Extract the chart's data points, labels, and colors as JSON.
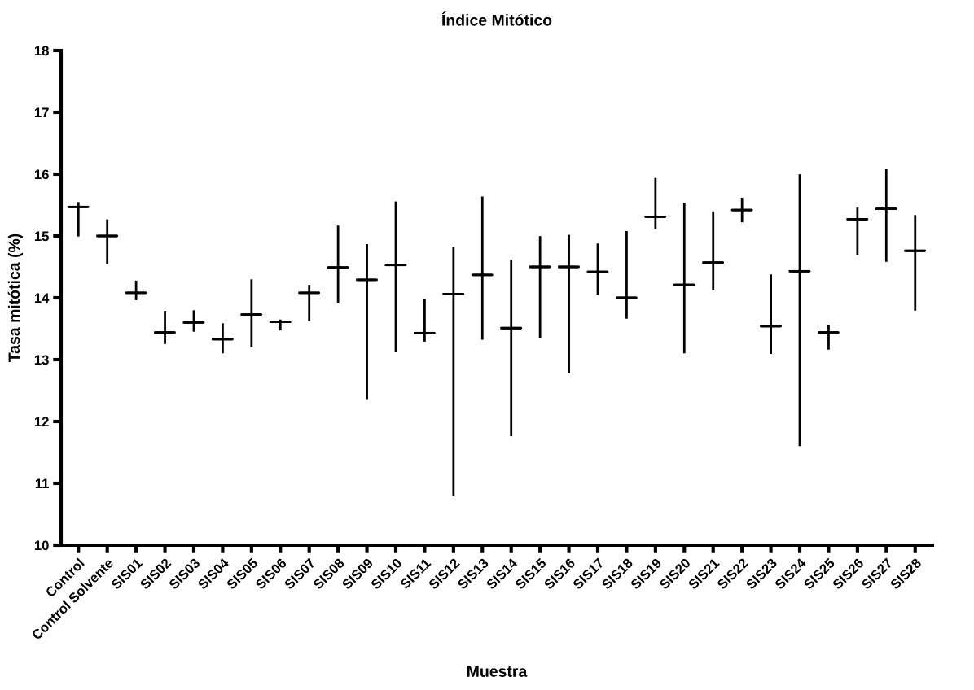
{
  "chart_data": {
    "type": "box",
    "title": "Índice Mitótico",
    "xlabel": "Muestra",
    "ylabel": "Tasa mitótica (%)",
    "categories": [
      "Control",
      "Control Solvente",
      "SIS01",
      "SIS02",
      "SIS03",
      "SIS04",
      "SIS05",
      "SIS06",
      "SIS07",
      "SIS08",
      "SIS09",
      "SIS10",
      "SIS11",
      "SIS12",
      "SIS13",
      "SIS14",
      "SIS15",
      "SIS16",
      "SIS17",
      "SIS18",
      "SIS19",
      "SIS20",
      "SIS21",
      "SIS22",
      "SIS23",
      "SIS24",
      "SIS25",
      "SIS26",
      "SIS27",
      "SIS28"
    ],
    "boxes": [
      {
        "low": 15.01,
        "q1": 15.47,
        "median": 15.47,
        "q3": 15.47,
        "high": 15.53
      },
      {
        "low": 14.56,
        "q1": 15.0,
        "median": 15.0,
        "q3": 15.0,
        "high": 15.25
      },
      {
        "low": 13.98,
        "q1": 14.08,
        "median": 14.08,
        "q3": 14.08,
        "high": 14.26
      },
      {
        "low": 13.27,
        "q1": 13.44,
        "median": 13.44,
        "q3": 13.44,
        "high": 13.77
      },
      {
        "low": 13.47,
        "q1": 13.6,
        "median": 13.6,
        "q3": 13.6,
        "high": 13.78
      },
      {
        "low": 13.12,
        "q1": 13.33,
        "median": 13.33,
        "q3": 13.33,
        "high": 13.57
      },
      {
        "low": 13.22,
        "q1": 13.73,
        "median": 13.73,
        "q3": 13.73,
        "high": 14.28
      },
      {
        "low": 13.49,
        "q1": 13.61,
        "median": 13.61,
        "q3": 13.61,
        "high": 13.63
      },
      {
        "low": 13.64,
        "q1": 14.08,
        "median": 14.08,
        "q3": 14.08,
        "high": 14.19
      },
      {
        "low": 13.94,
        "q1": 14.49,
        "median": 14.49,
        "q3": 14.49,
        "high": 15.15
      },
      {
        "low": 12.38,
        "q1": 14.29,
        "median": 14.29,
        "q3": 14.29,
        "high": 14.85
      },
      {
        "low": 13.15,
        "q1": 14.53,
        "median": 14.53,
        "q3": 14.53,
        "high": 15.54
      },
      {
        "low": 13.31,
        "q1": 13.43,
        "median": 13.43,
        "q3": 13.43,
        "high": 13.96
      },
      {
        "low": 10.81,
        "q1": 14.06,
        "median": 14.06,
        "q3": 14.06,
        "high": 14.8
      },
      {
        "low": 13.34,
        "q1": 14.37,
        "median": 14.37,
        "q3": 14.37,
        "high": 15.62
      },
      {
        "low": 11.78,
        "q1": 13.51,
        "median": 13.51,
        "q3": 13.51,
        "high": 14.6
      },
      {
        "low": 13.36,
        "q1": 14.5,
        "median": 14.5,
        "q3": 14.5,
        "high": 14.98
      },
      {
        "low": 12.8,
        "q1": 14.5,
        "median": 14.5,
        "q3": 14.5,
        "high": 15.0
      },
      {
        "low": 14.07,
        "q1": 14.42,
        "median": 14.42,
        "q3": 14.42,
        "high": 14.86
      },
      {
        "low": 13.68,
        "q1": 14.0,
        "median": 14.0,
        "q3": 14.0,
        "high": 15.06
      },
      {
        "low": 15.13,
        "q1": 15.31,
        "median": 15.31,
        "q3": 15.31,
        "high": 15.92
      },
      {
        "low": 13.12,
        "q1": 14.21,
        "median": 14.21,
        "q3": 14.21,
        "high": 15.52
      },
      {
        "low": 14.14,
        "q1": 14.57,
        "median": 14.57,
        "q3": 14.57,
        "high": 15.38
      },
      {
        "low": 15.24,
        "q1": 15.42,
        "median": 15.42,
        "q3": 15.42,
        "high": 15.6
      },
      {
        "low": 13.11,
        "q1": 13.54,
        "median": 13.54,
        "q3": 13.54,
        "high": 14.36
      },
      {
        "low": 11.62,
        "q1": 14.43,
        "median": 14.43,
        "q3": 14.43,
        "high": 15.98
      },
      {
        "low": 13.18,
        "q1": 13.44,
        "median": 13.44,
        "q3": 13.44,
        "high": 13.54
      },
      {
        "low": 14.71,
        "q1": 15.27,
        "median": 15.27,
        "q3": 15.27,
        "high": 15.44
      },
      {
        "low": 14.6,
        "q1": 15.44,
        "median": 15.44,
        "q3": 15.44,
        "high": 16.06
      },
      {
        "low": 13.81,
        "q1": 14.76,
        "median": 14.76,
        "q3": 14.76,
        "high": 15.32
      }
    ],
    "color": "#000000",
    "ylim": [
      10,
      18
    ],
    "yticks": [
      10,
      11,
      12,
      13,
      14,
      15,
      16,
      17,
      18
    ],
    "grid": false
  }
}
